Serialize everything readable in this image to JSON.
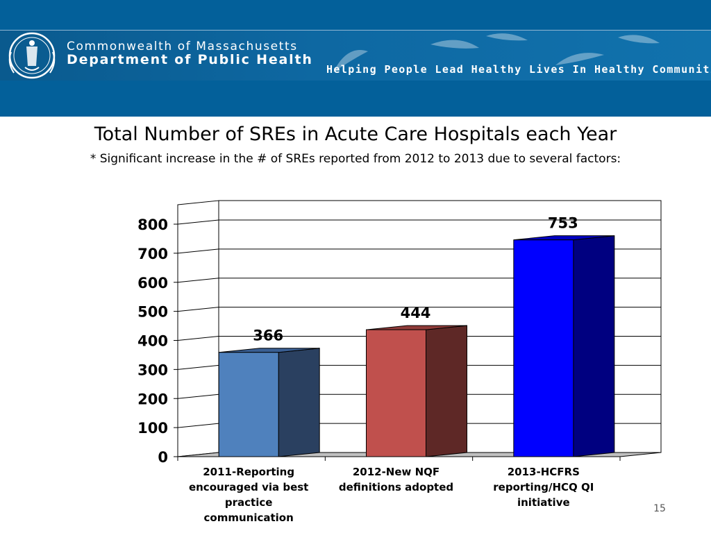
{
  "header": {
    "dept_line1": "Commonwealth of Massachusetts",
    "dept_line2": "Department of Public Health",
    "tagline": "Helping People Lead Healthy Lives In Healthy Communities",
    "logo_icon": "massachusetts-seal-icon",
    "background_color": "#03609a"
  },
  "slide": {
    "page_number": "15"
  },
  "chart_data": {
    "type": "bar",
    "style": "3d",
    "title": "Total Number of SREs in Acute Care Hospitals each Year",
    "subtitle": "* Significant increase in the # of SREs reported from 2012 to 2013 due to several factors:",
    "categories": [
      "2011-Reporting encouraged via best practice communication",
      "2012-New NQF definitions adopted",
      "2013-HCFRS reporting/HCQ QI initiative"
    ],
    "category_lines": [
      [
        "2011-Reporting",
        "encouraged via best",
        "practice",
        "communication"
      ],
      [
        "2012-New NQF",
        "definitions adopted"
      ],
      [
        "2013-HCFRS",
        "reporting/HCQ QI",
        "initiative"
      ]
    ],
    "values": [
      366,
      444,
      753
    ],
    "data_labels": [
      "366",
      "444",
      "753"
    ],
    "bar_colors": [
      {
        "front": "#4f81bd",
        "side": "#2a4060",
        "top": "#3a5f93"
      },
      {
        "front": "#c0504d",
        "side": "#5e2826",
        "top": "#8f3b39"
      },
      {
        "front": "#0000ff",
        "side": "#000080",
        "top": "#0000c0"
      }
    ],
    "ylim": [
      0,
      800
    ],
    "yticks": [
      0,
      100,
      200,
      300,
      400,
      500,
      600,
      700,
      800
    ],
    "ytick_labels": [
      "0",
      "100",
      "200",
      "300",
      "400",
      "500",
      "600",
      "700",
      "800"
    ],
    "grid": true,
    "legend": "none",
    "xlabel": "",
    "ylabel": ""
  }
}
